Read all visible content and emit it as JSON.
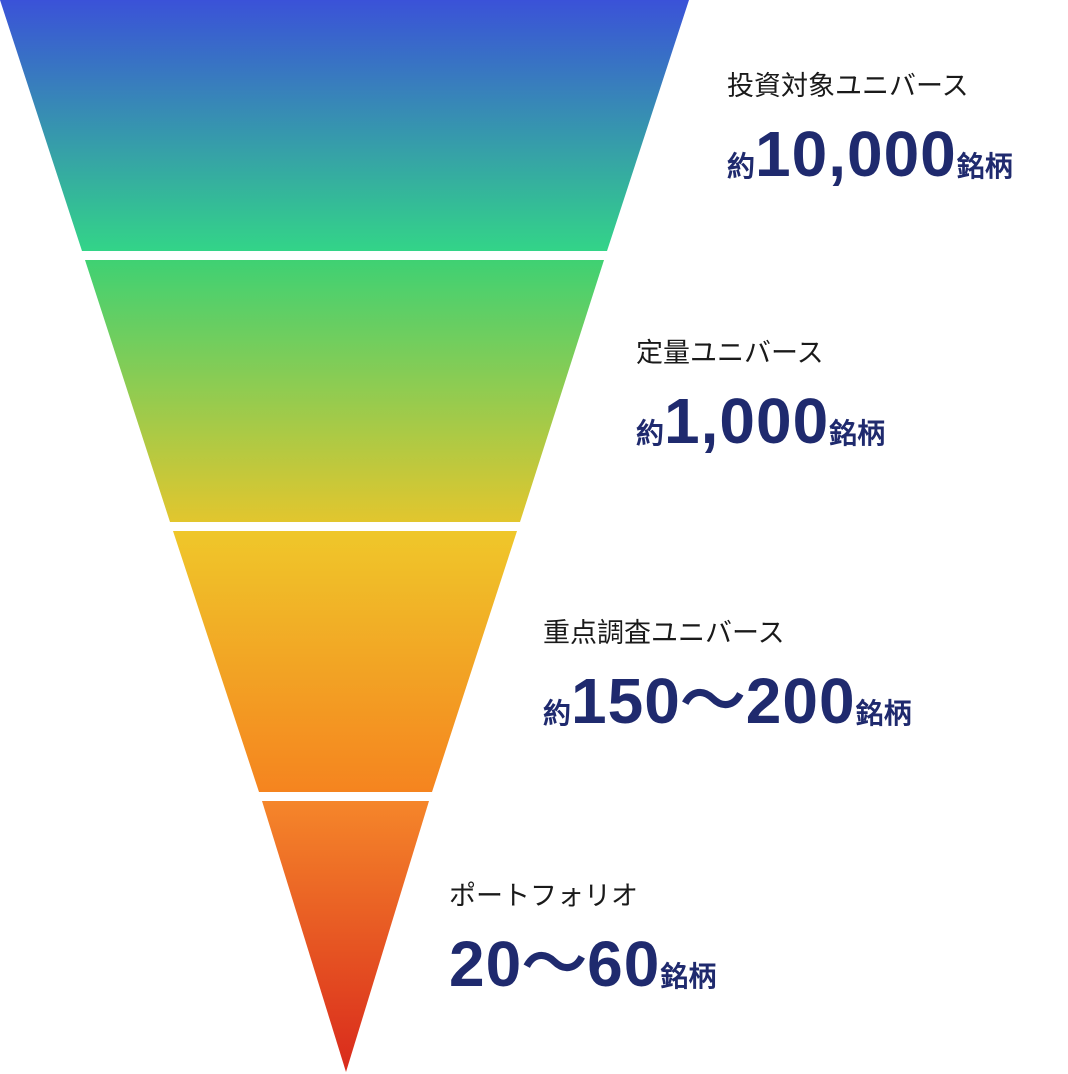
{
  "funnel": {
    "stages": [
      {
        "name": "投資対象ユニバース",
        "prefix": "約",
        "number": "10,000",
        "suffix": "銘柄",
        "colors": [
          "#3a52d8",
          "#33d488"
        ]
      },
      {
        "name": "定量ユニバース",
        "prefix": "約",
        "number": "1,000",
        "suffix": "銘柄",
        "colors": [
          "#3fd173",
          "#e2c62e"
        ]
      },
      {
        "name": "重点調査ユニバース",
        "prefix": "約",
        "number": "150〜200",
        "suffix": "銘柄",
        "colors": [
          "#efc72a",
          "#f5841f"
        ]
      },
      {
        "name": "ポートフォリオ",
        "prefix": "",
        "number": "20〜60",
        "suffix": "銘柄",
        "colors": [
          "#f5862a",
          "#d92a1c"
        ]
      }
    ],
    "count_color": "#1f2a6e"
  }
}
